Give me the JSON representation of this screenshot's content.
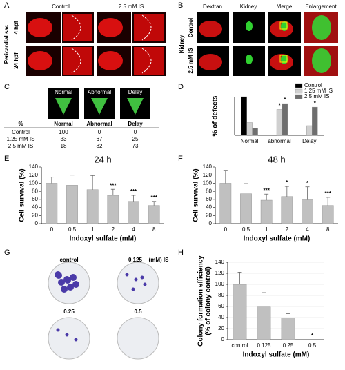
{
  "panel_labels": [
    "A",
    "B",
    "C",
    "D",
    "E",
    "F",
    "G",
    "H"
  ],
  "panel_a": {
    "columns": [
      "Control",
      "2.5 mM IS"
    ],
    "row_group": "Pericardial sac",
    "rows": [
      "4 hpf",
      "24 hpf"
    ]
  },
  "panel_b": {
    "columns": [
      "Dextran",
      "Kidney",
      "Merge",
      "Enlargement"
    ],
    "row_group": "Kidney",
    "rows": [
      "Control",
      "2.5 mM IS"
    ]
  },
  "panel_c": {
    "images": [
      "Normal",
      "Abnormal",
      "Delay"
    ],
    "table": {
      "header": [
        "%",
        "Normal",
        "Abnormal",
        "Delay"
      ],
      "rows": [
        [
          "Control",
          100,
          0,
          0
        ],
        [
          "1.25 mM IS",
          33,
          67,
          25
        ],
        [
          "2.5 mM IS",
          18,
          82,
          73
        ]
      ]
    }
  },
  "panel_g": {
    "labels": [
      "control",
      "0.125",
      "(mM) IS",
      "0.25",
      "0.5"
    ]
  },
  "chart_data": [
    {
      "type": "bar",
      "ylabel": [
        "% of defects"
      ],
      "categories": [
        "Normal",
        "abnormal",
        "Delay"
      ],
      "ylim": [
        0,
        100
      ],
      "legend": "top-right",
      "grid": false,
      "series": [
        {
          "name": "Control",
          "color": "#000000",
          "values": [
            100,
            0,
            0
          ]
        },
        {
          "name": "1.25 mM IS",
          "color": "#d0d0d0",
          "values": [
            33,
            67,
            25
          ],
          "annotations": [
            null,
            "*",
            null
          ]
        },
        {
          "name": "2.5 mM IS",
          "color": "#6e6e6e",
          "values": [
            18,
            82,
            73
          ],
          "annotations": [
            null,
            "*",
            "*"
          ]
        }
      ]
    },
    {
      "type": "bar",
      "title": "24 h",
      "xlabel": "Indoxyl sulfate (mM)",
      "ylabel": [
        "Cell survival (%)"
      ],
      "categories": [
        "0",
        "0.5",
        "1",
        "2",
        "4",
        "8"
      ],
      "ylim": [
        0,
        140
      ],
      "yticks": [
        0,
        20,
        40,
        60,
        80,
        100,
        120,
        140
      ],
      "grid": false,
      "series": [
        {
          "color": "#c0c0c0",
          "values": [
            100,
            95,
            84,
            70,
            55,
            45
          ],
          "errors": [
            15,
            25,
            35,
            15,
            15,
            10
          ],
          "annotations": [
            null,
            null,
            null,
            "***",
            "***",
            "***"
          ]
        }
      ]
    },
    {
      "type": "bar",
      "title": "48 h",
      "xlabel": "Indoxyl sulfate (mM)",
      "ylabel": [
        "Cell survival (%)"
      ],
      "categories": [
        "0",
        "0.5",
        "1",
        "2",
        "4",
        "8"
      ],
      "ylim": [
        0,
        140
      ],
      "yticks": [
        0,
        20,
        40,
        60,
        80,
        100,
        120,
        140
      ],
      "grid": false,
      "series": [
        {
          "color": "#c0c0c0",
          "values": [
            100,
            74,
            58,
            67,
            59,
            45
          ],
          "errors": [
            32,
            25,
            15,
            25,
            32,
            20
          ],
          "annotations": [
            null,
            null,
            "***",
            "*",
            "*",
            "***"
          ]
        }
      ]
    },
    {
      "type": "bar",
      "xlabel": "Indoxyl sulfate (mM)",
      "ylabel": [
        "Colony formation efficiency",
        "(% of colony control)"
      ],
      "categories": [
        "control",
        "0.125",
        "0.25",
        "0.5"
      ],
      "ylim": [
        0,
        140
      ],
      "yticks": [
        0,
        20,
        40,
        60,
        80,
        100,
        120,
        140
      ],
      "grid": true,
      "series": [
        {
          "color": "#c0c0c0",
          "values": [
            100,
            59,
            39,
            0
          ],
          "errors": [
            22,
            26,
            8,
            null
          ],
          "annotations": [
            null,
            null,
            null,
            "*"
          ]
        }
      ]
    }
  ]
}
